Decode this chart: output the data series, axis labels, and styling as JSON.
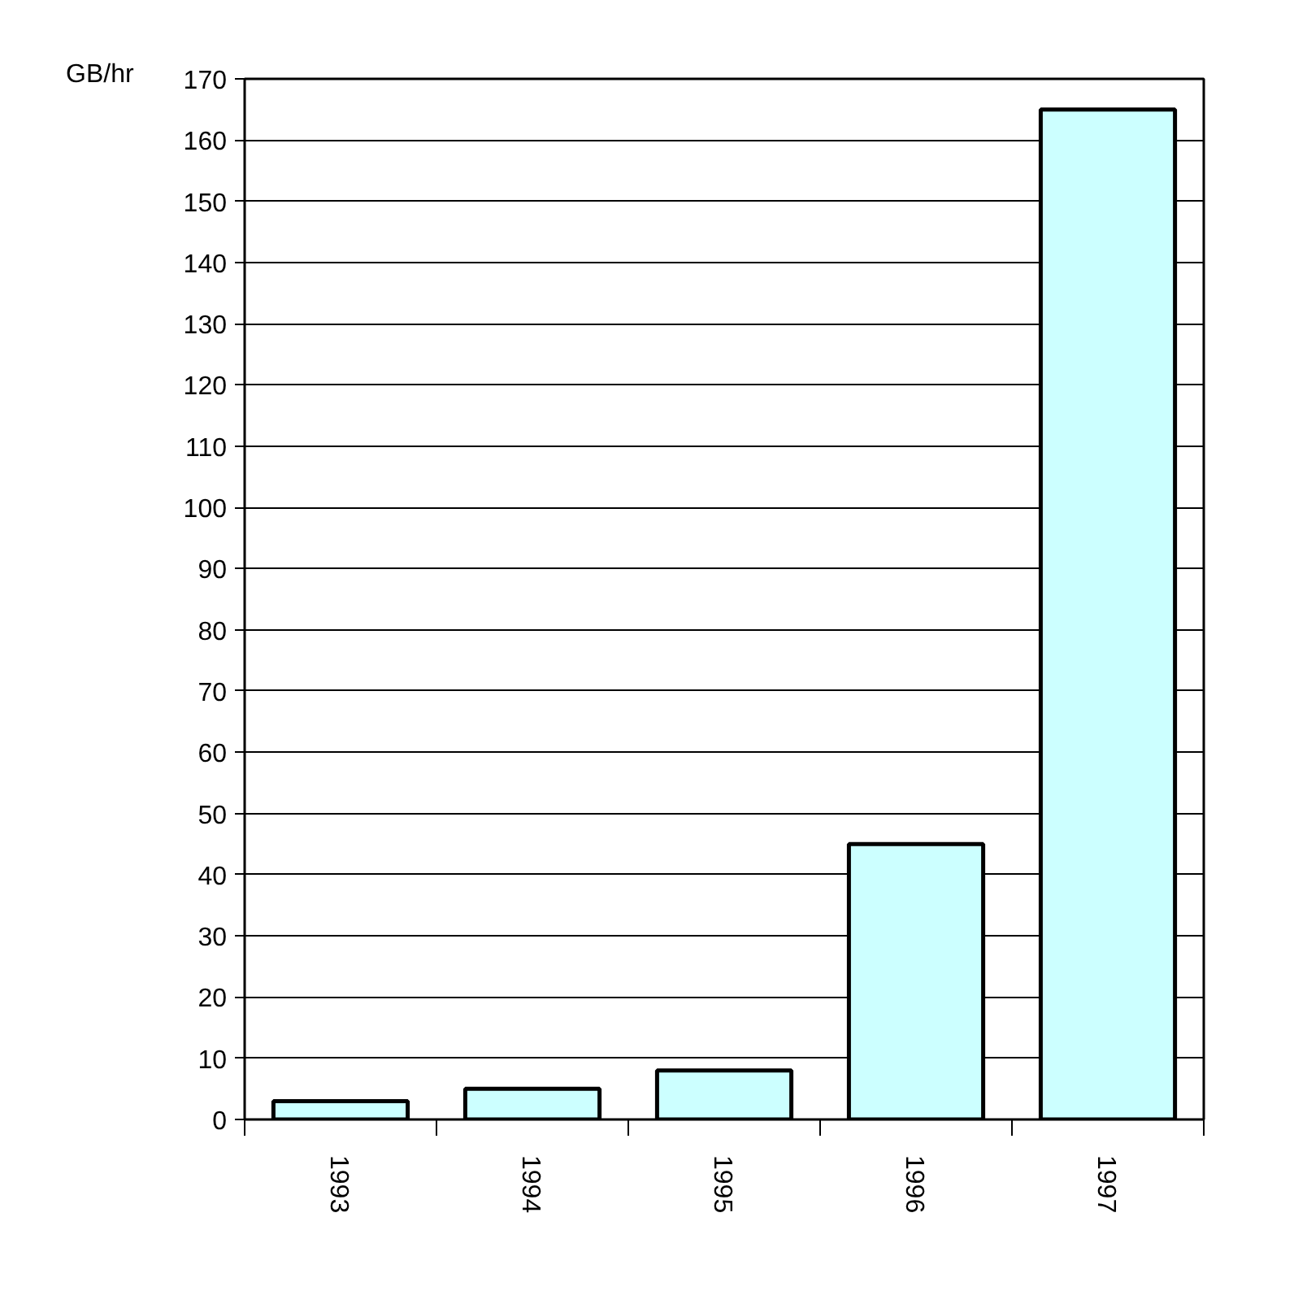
{
  "chart_data": {
    "type": "bar",
    "ylabel": "GB/hr",
    "categories": [
      "1993",
      "1994",
      "1995",
      "1996",
      "1997"
    ],
    "values": [
      3,
      5,
      8,
      45,
      165
    ],
    "color": "#ccffff",
    "ylim": [
      0,
      170
    ],
    "yticks": [
      0,
      10,
      20,
      30,
      40,
      50,
      60,
      70,
      80,
      90,
      100,
      110,
      120,
      130,
      140,
      150,
      160,
      170
    ],
    "grid": "y",
    "legend": false
  }
}
